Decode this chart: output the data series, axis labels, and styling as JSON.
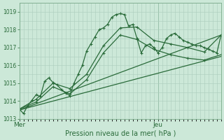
{
  "title": "",
  "xlabel": "Pression niveau de la mer( hPa )",
  "ylabel": "",
  "bg_color": "#cce8d8",
  "grid_color": "#aaccbc",
  "line_color": "#2a6b3a",
  "ylim": [
    1013.0,
    1019.5
  ],
  "xlim": [
    0,
    48
  ],
  "x_mer": 0,
  "x_jeu": 33,
  "tick_color": "#2a6b3a",
  "series_detailed": [
    0.0,
    1013.55,
    1.0,
    1013.3,
    2.0,
    1013.75,
    3.0,
    1014.05,
    4.0,
    1014.35,
    5.0,
    1014.25,
    6.0,
    1015.1,
    7.0,
    1015.3,
    8.0,
    1015.05,
    9.0,
    1014.9,
    10.0,
    1014.65,
    11.0,
    1014.45,
    12.0,
    1014.3,
    13.0,
    1015.0,
    14.0,
    1015.5,
    15.0,
    1016.0,
    16.0,
    1016.8,
    17.0,
    1017.2,
    18.0,
    1017.6,
    19.0,
    1018.0,
    20.0,
    1018.1,
    21.0,
    1018.3,
    22.0,
    1018.7,
    23.0,
    1018.85,
    24.0,
    1018.9,
    25.0,
    1018.85,
    26.0,
    1018.2,
    27.0,
    1018.3,
    28.0,
    1017.5,
    29.0,
    1016.7,
    30.0,
    1017.1,
    31.0,
    1017.2,
    32.0,
    1017.0,
    33.0,
    1016.7,
    34.0,
    1017.0,
    35.0,
    1017.5,
    36.0,
    1017.7,
    37.0,
    1017.8,
    38.0,
    1017.6,
    39.0,
    1017.4,
    40.0,
    1017.3,
    41.0,
    1017.2,
    42.0,
    1017.1,
    43.0,
    1017.1,
    44.0,
    1017.0,
    45.0,
    1016.9,
    46.0,
    1016.8,
    47.0,
    1016.7,
    48.0,
    1017.7
  ],
  "series_medium1": [
    0.0,
    1013.55,
    4.0,
    1014.1,
    8.0,
    1015.0,
    12.0,
    1014.7,
    16.0,
    1015.5,
    20.0,
    1017.1,
    24.0,
    1018.1,
    28.0,
    1018.15,
    32.0,
    1017.4,
    36.0,
    1017.2,
    40.0,
    1017.0,
    44.0,
    1016.75,
    48.0,
    1017.7
  ],
  "series_medium2": [
    0.0,
    1013.55,
    4.0,
    1013.95,
    8.0,
    1014.8,
    12.0,
    1014.4,
    16.0,
    1015.2,
    20.0,
    1016.7,
    24.0,
    1017.7,
    28.0,
    1017.45,
    32.0,
    1016.9,
    36.0,
    1016.6,
    40.0,
    1016.4,
    44.0,
    1016.3,
    48.0,
    1016.6
  ],
  "series_line1": [
    0.0,
    1013.5,
    48.0,
    1017.7
  ],
  "series_line2": [
    0.0,
    1013.5,
    48.0,
    1016.5
  ],
  "yticks": [
    1013,
    1014,
    1015,
    1016,
    1017,
    1018,
    1019
  ],
  "markersize": 2.5,
  "linewidth": 0.9
}
